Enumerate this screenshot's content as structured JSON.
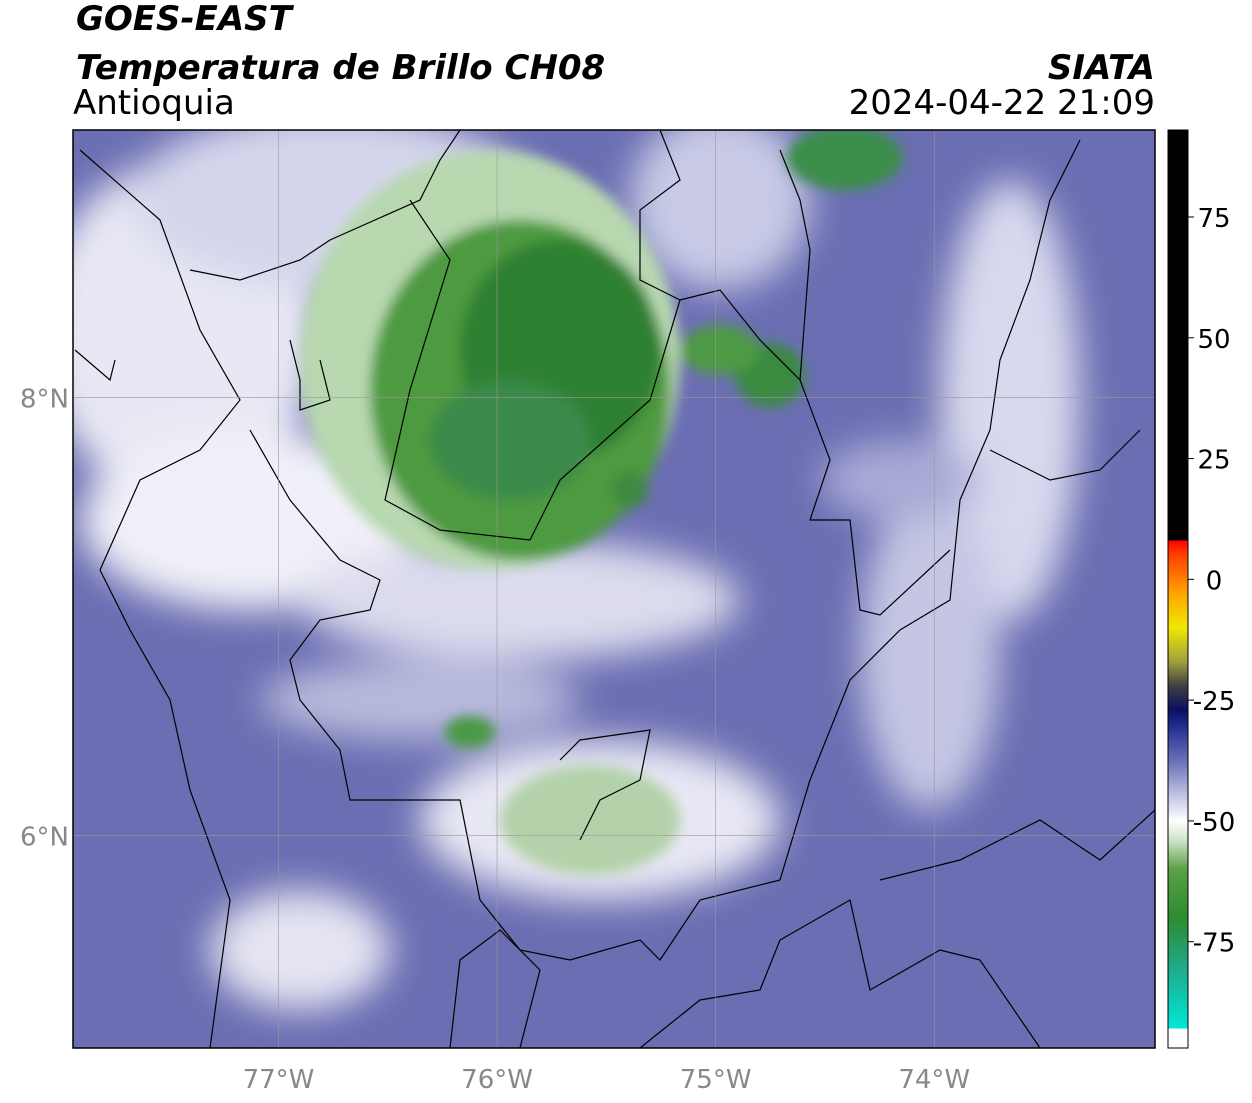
{
  "header": {
    "title": "GOES-EAST",
    "subtitle": "Temperatura de Brillo CH08",
    "region": "Antioquia",
    "source": "SIATA",
    "timestamp": "2024-04-22 21:09"
  },
  "map": {
    "lonlim": [
      -77.94,
      -72.99
    ],
    "latlim": [
      5.03,
      9.22
    ],
    "lonticks": [
      {
        "value": -77,
        "label": "77°W"
      },
      {
        "value": -76,
        "label": "76°W"
      },
      {
        "value": -75,
        "label": "75°W"
      },
      {
        "value": -74,
        "label": "74°W"
      }
    ],
    "latticks": [
      {
        "value": 6,
        "label": "6°N"
      },
      {
        "value": 8,
        "label": "8°N"
      }
    ],
    "grid": true
  },
  "colorbar": {
    "lim": [
      -97,
      93
    ],
    "ticks": [
      -75,
      -50,
      -25,
      0,
      25,
      50,
      75
    ],
    "stops": [
      [
        -97,
        "#ffffff"
      ],
      [
        -93,
        "#ffffff"
      ],
      [
        -93,
        "#00e8d8"
      ],
      [
        -80,
        "#20a888"
      ],
      [
        -70,
        "#2e8b2e"
      ],
      [
        -60,
        "#5aa048"
      ],
      [
        -54,
        "#cfe3c8"
      ],
      [
        -50,
        "#ffffff"
      ],
      [
        -45,
        "#c4c6e6"
      ],
      [
        -38,
        "#7074b8"
      ],
      [
        -30,
        "#1c2a8c"
      ],
      [
        -27,
        "#0a1060"
      ],
      [
        -22,
        "#404040"
      ],
      [
        -17,
        "#a0a040"
      ],
      [
        -10,
        "#f0e800"
      ],
      [
        -3,
        "#ffa500"
      ],
      [
        5,
        "#ff4000"
      ],
      [
        8,
        "#ff0000"
      ],
      [
        8,
        "#000000"
      ],
      [
        93,
        "#000000"
      ]
    ]
  }
}
